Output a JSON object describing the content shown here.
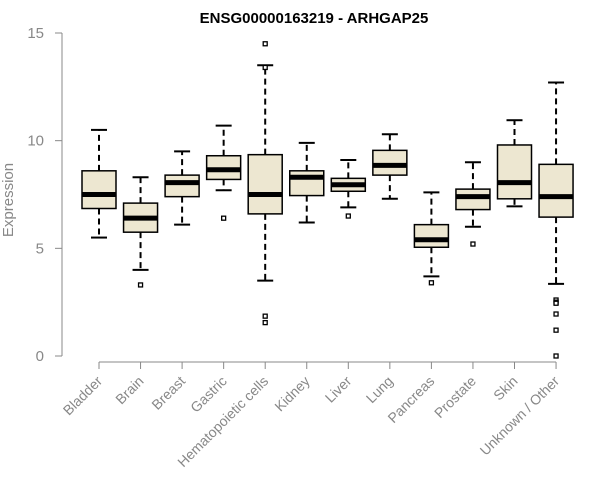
{
  "chart_data": {
    "type": "boxplot",
    "title": "ENSG00000163219 - ARHGAP25",
    "ylabel": "Expression",
    "ylim": [
      0,
      15
    ],
    "yticks": [
      0,
      5,
      10,
      15
    ],
    "box_fill": "#ede7d1",
    "categories": [
      "Bladder",
      "Brain",
      "Breast",
      "Gastric",
      "Hematopoietic cells",
      "Kidney",
      "Liver",
      "Lung",
      "Pancreas",
      "Prostate",
      "Skin",
      "Unknown / Other"
    ],
    "boxes": [
      {
        "min": 5.5,
        "q1": 6.85,
        "median": 7.5,
        "q3": 8.6,
        "max": 10.5,
        "outliers": []
      },
      {
        "min": 4.0,
        "q1": 5.75,
        "median": 6.4,
        "q3": 7.1,
        "max": 8.3,
        "outliers": [
          3.3
        ]
      },
      {
        "min": 6.1,
        "q1": 7.4,
        "median": 8.05,
        "q3": 8.4,
        "max": 9.5,
        "outliers": []
      },
      {
        "min": 7.7,
        "q1": 8.2,
        "median": 8.65,
        "q3": 9.3,
        "max": 10.7,
        "outliers": [
          6.4
        ]
      },
      {
        "min": 3.5,
        "q1": 6.6,
        "median": 7.5,
        "q3": 9.35,
        "max": 13.5,
        "outliers": [
          14.5,
          13.4,
          1.85,
          1.55
        ]
      },
      {
        "min": 6.2,
        "q1": 7.45,
        "median": 8.3,
        "q3": 8.6,
        "max": 9.9,
        "outliers": []
      },
      {
        "min": 6.9,
        "q1": 7.65,
        "median": 7.95,
        "q3": 8.25,
        "max": 9.1,
        "outliers": [
          6.5
        ]
      },
      {
        "min": 7.3,
        "q1": 8.4,
        "median": 8.85,
        "q3": 9.55,
        "max": 10.3,
        "outliers": []
      },
      {
        "min": 3.7,
        "q1": 5.05,
        "median": 5.4,
        "q3": 6.1,
        "max": 7.6,
        "outliers": [
          3.4
        ]
      },
      {
        "min": 6.0,
        "q1": 6.8,
        "median": 7.4,
        "q3": 7.75,
        "max": 9.0,
        "outliers": [
          5.2
        ]
      },
      {
        "min": 6.95,
        "q1": 7.3,
        "median": 8.05,
        "q3": 9.8,
        "max": 10.95,
        "outliers": []
      },
      {
        "min": 3.35,
        "q1": 6.45,
        "median": 7.4,
        "q3": 8.9,
        "max": 12.7,
        "outliers": [
          2.6,
          2.5,
          2.45,
          1.95,
          1.2,
          0.0
        ]
      }
    ]
  }
}
